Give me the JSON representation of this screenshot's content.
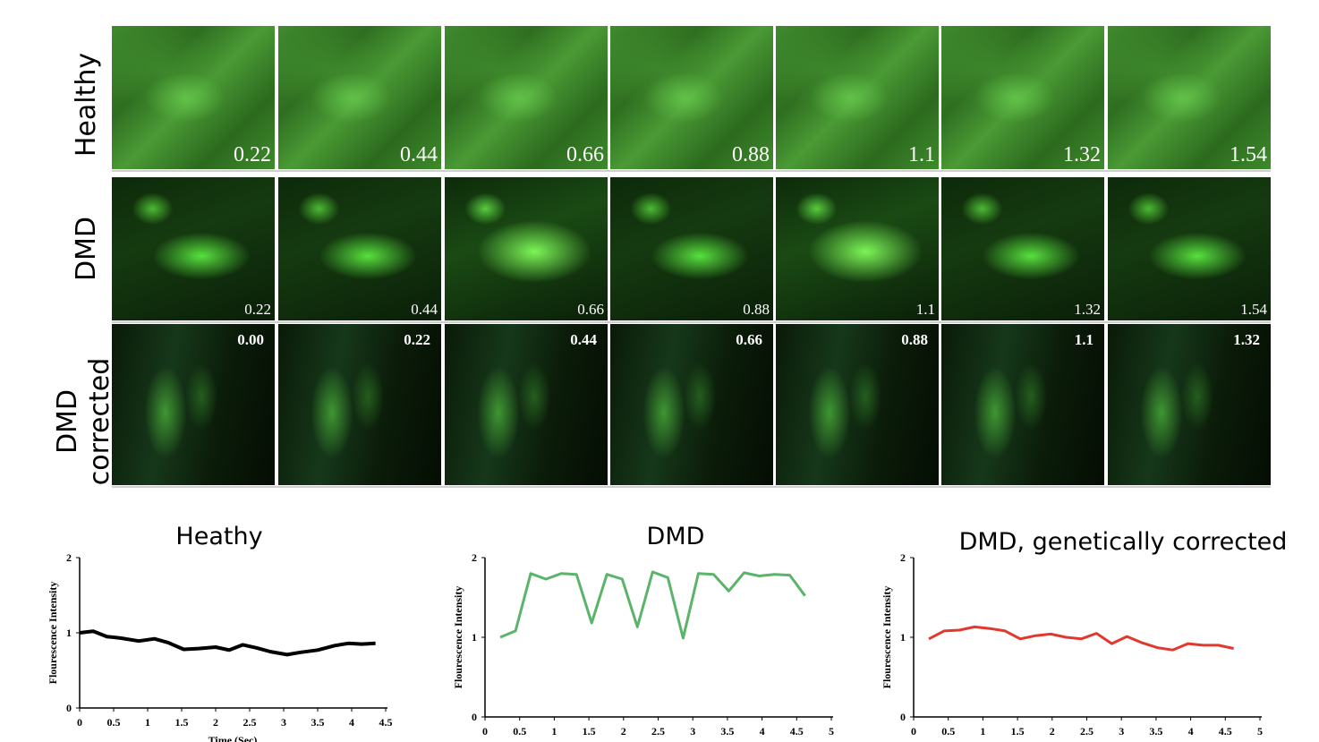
{
  "rows": [
    {
      "label": "Healthy",
      "type": "h",
      "stamps": [
        "0.22",
        "0.44",
        "0.66",
        "0.88",
        "1.1",
        "1.32",
        "1.54"
      ]
    },
    {
      "label": "DMD",
      "type": "d",
      "stamps": [
        "0.22",
        "0.44",
        "0.66",
        "0.88",
        "1.1",
        "1.32",
        "1.54"
      ]
    },
    {
      "label": "DMD corrected",
      "type": "c",
      "stamps": [
        "0.00",
        "0.22",
        "0.44",
        "0.66",
        "0.88",
        "1.1",
        "1.32"
      ]
    }
  ],
  "chart_data": [
    {
      "type": "line",
      "title": "Heathy",
      "ylabel": "Flourescence Intensity",
      "xlabel": "Time (Sec)",
      "color": "#000000",
      "ylim": [
        0,
        2
      ],
      "xlim": [
        0,
        4.5
      ],
      "xticks": [
        "0",
        "0.5",
        "1",
        "1.5",
        "2",
        "2.5",
        "3",
        "3.5",
        "4",
        "4.5"
      ],
      "yticks": [
        "0",
        "1",
        "2"
      ],
      "x": [
        0,
        0.2,
        0.4,
        0.6,
        0.87,
        1.1,
        1.3,
        1.53,
        1.75,
        2.0,
        2.2,
        2.4,
        2.6,
        2.8,
        3.05,
        3.25,
        3.5,
        3.75,
        3.95,
        4.15,
        4.35
      ],
      "y": [
        1.0,
        1.02,
        0.95,
        0.93,
        0.89,
        0.92,
        0.87,
        0.78,
        0.79,
        0.81,
        0.77,
        0.84,
        0.8,
        0.75,
        0.71,
        0.74,
        0.77,
        0.83,
        0.86,
        0.85,
        0.86
      ]
    },
    {
      "type": "line",
      "title": "DMD",
      "ylabel": "Flourescence Intensity",
      "xlabel": "",
      "color": "#5ab46a",
      "ylim": [
        0,
        2
      ],
      "xlim": [
        0,
        5
      ],
      "xticks": [
        "0",
        "0.5",
        "1",
        "1.5",
        "2",
        "2.5",
        "3",
        "3.5",
        "4",
        "4.5",
        "5"
      ],
      "yticks": [
        "0",
        "1",
        "2"
      ],
      "x": [
        0.22,
        0.44,
        0.66,
        0.88,
        1.1,
        1.32,
        1.54,
        1.76,
        1.98,
        2.2,
        2.42,
        2.64,
        2.86,
        3.08,
        3.3,
        3.52,
        3.74,
        3.96,
        4.18,
        4.4,
        4.62
      ],
      "y": [
        1.0,
        1.08,
        1.8,
        1.73,
        1.8,
        1.79,
        1.18,
        1.79,
        1.73,
        1.13,
        1.82,
        1.75,
        0.99,
        1.8,
        1.79,
        1.58,
        1.81,
        1.77,
        1.79,
        1.78,
        1.52
      ]
    },
    {
      "type": "line",
      "title": "DMD, genetically corrected",
      "ylabel": "Flourescence Intensity",
      "xlabel": "",
      "color": "#e03a2f",
      "ylim": [
        0,
        2
      ],
      "xlim": [
        0,
        5
      ],
      "xticks": [
        "0",
        "0.5",
        "1",
        "1.5",
        "2",
        "2.5",
        "3",
        "3.5",
        "4",
        "4.5",
        "5"
      ],
      "yticks": [
        "0",
        "1",
        "2"
      ],
      "x": [
        0.22,
        0.44,
        0.66,
        0.88,
        1.1,
        1.32,
        1.54,
        1.76,
        1.98,
        2.2,
        2.42,
        2.64,
        2.86,
        3.08,
        3.3,
        3.52,
        3.74,
        3.96,
        4.18,
        4.4,
        4.62
      ],
      "y": [
        0.98,
        1.08,
        1.09,
        1.13,
        1.11,
        1.08,
        0.98,
        1.02,
        1.04,
        1.0,
        0.98,
        1.05,
        0.92,
        1.01,
        0.93,
        0.87,
        0.84,
        0.92,
        0.9,
        0.9,
        0.86
      ]
    }
  ]
}
